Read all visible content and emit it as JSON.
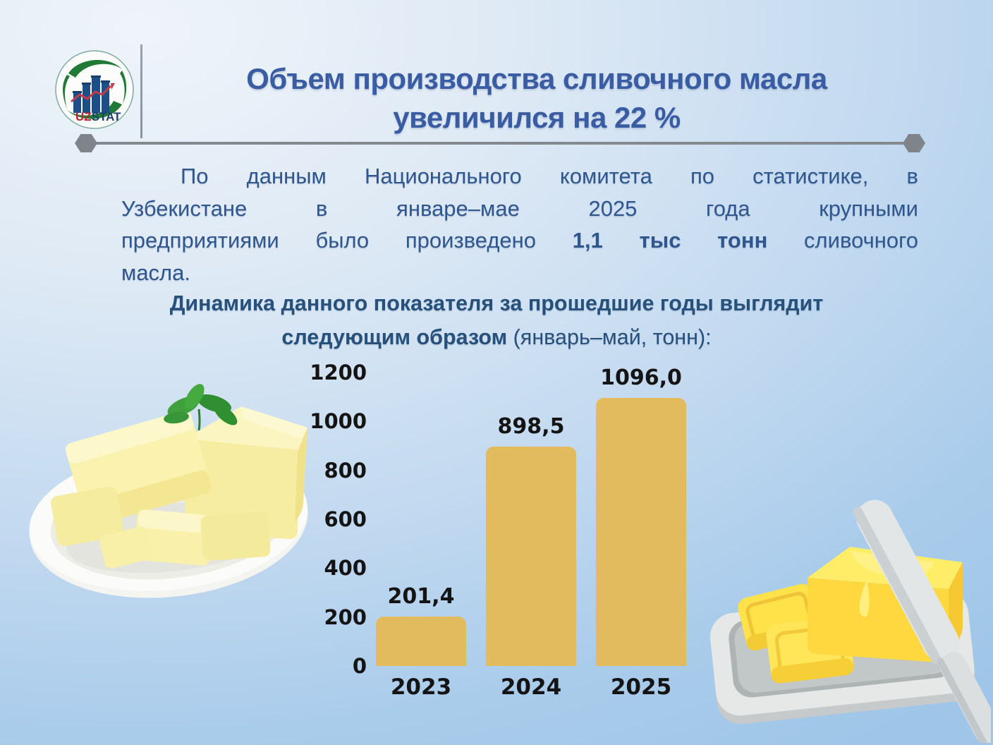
{
  "logo": {
    "uz": "UZ",
    "stat": "STAT"
  },
  "header": {
    "title_line1": "Объем производства сливочного масла",
    "title_line2": "увеличился на 22 %"
  },
  "intro": {
    "line1": "По данным Национального комитета по статистике, в",
    "line2": "Узбекистане в январе–мае 2025 года крупными",
    "line3_before": "предприятиями было произведено ",
    "line3_bold": "1,1 тыс тонн",
    "line3_after": " сливочного",
    "line4": "масла."
  },
  "subtitle": {
    "line1": "Динамика данного показателя за прошедшие годы выглядит",
    "line2_bold": "следующим образом",
    "line2_regular": " (январь–май, тонн):"
  },
  "chart_data": {
    "type": "bar",
    "categories": [
      "2023",
      "2024",
      "2025"
    ],
    "values": [
      201.4,
      898.5,
      1096.0
    ],
    "value_labels": [
      "201,4",
      "898,5",
      "1096,0"
    ],
    "title": "",
    "xlabel": "",
    "ylabel": "",
    "ylim": [
      0,
      1200
    ],
    "yticks": [
      0,
      200,
      400,
      600,
      800,
      1000,
      1200
    ],
    "grid": false,
    "legend": false,
    "bar_color": "#E3BB5F",
    "label_color": "#141414"
  },
  "colors": {
    "title_blue": "#3A5CA2",
    "body_blue": "#30568E",
    "subtitle_blue": "#27507B",
    "divider_gray": "#84898E",
    "bar_gold": "#E3BB5F",
    "background_light": "#EFF4FA",
    "background_blue": "#9FC6E8"
  }
}
